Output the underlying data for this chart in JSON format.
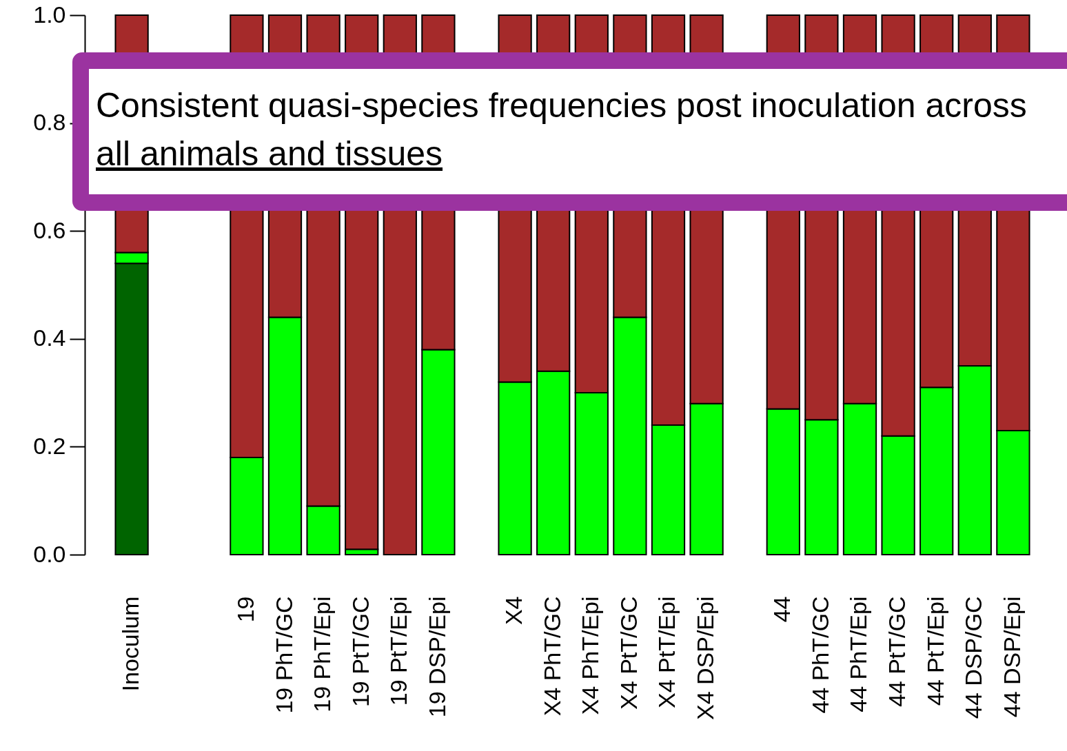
{
  "chart_data": {
    "type": "bar",
    "stacked": true,
    "categories": [
      "Inoculum",
      null,
      null,
      "19",
      "19 PhT/GC",
      "19 PhT/Epi",
      "19 PtT/GC",
      "19 PtT/Epi",
      "19 DSP/Epi",
      null,
      "X4",
      "X4 PhT/GC",
      "X4 PhT/Epi",
      "X4 PtT/GC",
      "X4 PtT/Epi",
      "X4 DSP/Epi",
      null,
      "44",
      "44 PhT/GC",
      "44 PhT/Epi",
      "44 PtT/GC",
      "44 PtT/Epi",
      "44 DSP/GC",
      "44 DSP/Epi"
    ],
    "series": [
      {
        "color": "#006400",
        "values": [
          0.54,
          null,
          null,
          null,
          null,
          null,
          null,
          null,
          null,
          null,
          null,
          null,
          null,
          null,
          null,
          null,
          null,
          null,
          null,
          null,
          null,
          null,
          null,
          null
        ]
      },
      {
        "color": "#00ff00",
        "values": [
          0.02,
          null,
          null,
          0.18,
          0.44,
          0.09,
          0.01,
          0,
          0.38,
          null,
          0.32,
          0.34,
          0.3,
          0.44,
          0.24,
          0.28,
          null,
          0.27,
          0.25,
          0.28,
          0.22,
          0.31,
          0.35,
          0.23
        ]
      },
      {
        "color": "#a52a2a",
        "values": [
          0.44,
          null,
          null,
          0.82,
          0.56,
          0.91,
          0.99,
          1,
          0.62,
          null,
          0.68,
          0.66,
          0.7,
          0.56,
          0.76,
          0.72,
          null,
          0.73,
          0.75,
          0.72,
          0.78,
          0.69,
          0.65,
          0.77
        ]
      }
    ],
    "ylim": [
      0,
      1
    ],
    "yticks": [
      {
        "value": 0,
        "label": "0.0"
      },
      {
        "value": 0.2,
        "label": "0.2"
      },
      {
        "value": 0.4,
        "label": "0.4"
      },
      {
        "value": 0.6,
        "label": "0.6"
      },
      {
        "value": 0.8,
        "label": "0.8"
      },
      {
        "value": 1,
        "label": "1.0"
      }
    ],
    "annotations": [
      "Consistent quasi-species frequencies post inoculation across",
      "all animals and tissues"
    ],
    "grid": false,
    "legend": false
  }
}
